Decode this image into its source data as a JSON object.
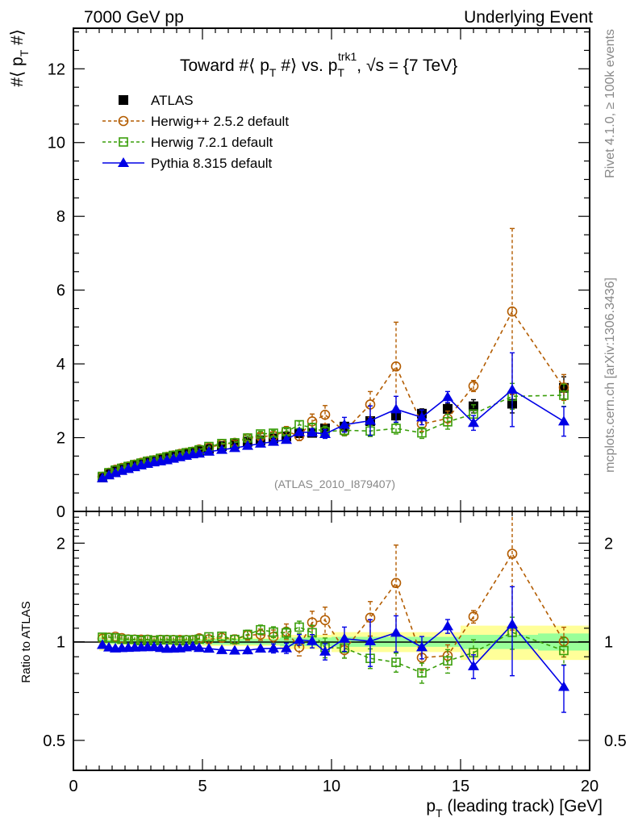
{
  "header": {
    "left": "7000 GeV pp",
    "right": "Underlying Event"
  },
  "side_labels": {
    "rivet": "Rivet 4.1.0, ≥ 100k events",
    "mcplots": "mcplots.cern.ch [arXiv:1306.3436]"
  },
  "chart_data": [
    {
      "type": "scatter",
      "panel": "main",
      "title": "Toward #⟨ p_T #⟩ vs. p_T^trk1, √s = {7 TeV}",
      "title_parts": {
        "a": "Toward #⟨ p",
        "b": "T",
        "c": " #⟩ vs. p",
        "d": "T",
        "e": "trk1",
        "f": ", √s = {7 TeV}"
      },
      "ylabel": "#⟨ p_T #⟩",
      "ylabel_parts": {
        "a": "#⟨ p",
        "b": "T",
        "c": " #⟩"
      },
      "xlabel": "p_T (leading track) [GeV]",
      "xlim": [
        0,
        20
      ],
      "ylim": [
        0,
        13.1
      ],
      "yticks": [
        0,
        2,
        4,
        6,
        8,
        10,
        12
      ],
      "xticks": [
        0,
        5,
        10,
        15,
        20
      ],
      "analysis_tag": "(ATLAS_2010_I879407)",
      "legend_position": "top-left",
      "x": [
        1.125,
        1.375,
        1.625,
        1.875,
        2.125,
        2.375,
        2.625,
        2.875,
        3.125,
        3.375,
        3.625,
        3.875,
        4.125,
        4.375,
        4.625,
        4.875,
        5.25,
        5.75,
        6.25,
        6.75,
        7.25,
        7.75,
        8.25,
        8.75,
        9.25,
        9.75,
        10.5,
        11.5,
        12.5,
        13.5,
        14.5,
        15.5,
        17,
        19
      ],
      "series": [
        {
          "name": "ATLAS",
          "color": "#000000",
          "marker": "filled-square",
          "line": "none",
          "values": [
            0.92,
            1.02,
            1.09,
            1.15,
            1.2,
            1.25,
            1.3,
            1.34,
            1.38,
            1.42,
            1.46,
            1.5,
            1.54,
            1.57,
            1.6,
            1.64,
            1.7,
            1.77,
            1.83,
            1.89,
            1.93,
            1.98,
            2.03,
            2.12,
            2.13,
            2.25,
            2.3,
            2.45,
            2.6,
            2.65,
            2.78,
            2.85,
            2.92,
            3.35
          ],
          "errors": [
            0.02,
            0.02,
            0.02,
            0.02,
            0.02,
            0.02,
            0.02,
            0.02,
            0.02,
            0.02,
            0.02,
            0.02,
            0.02,
            0.02,
            0.02,
            0.02,
            0.03,
            0.03,
            0.03,
            0.04,
            0.04,
            0.05,
            0.05,
            0.06,
            0.07,
            0.08,
            0.08,
            0.1,
            0.12,
            0.13,
            0.15,
            0.18,
            0.25,
            0.3
          ]
        },
        {
          "name": "Herwig++ 2.5.2 default",
          "color": "#b35c00",
          "marker": "open-circle",
          "line": "dashed",
          "values": [
            0.94,
            1.05,
            1.13,
            1.18,
            1.22,
            1.27,
            1.32,
            1.36,
            1.39,
            1.44,
            1.48,
            1.52,
            1.56,
            1.59,
            1.62,
            1.68,
            1.73,
            1.82,
            1.86,
            1.98,
            2.03,
            2.05,
            2.18,
            2.04,
            2.44,
            2.62,
            2.17,
            2.9,
            3.93,
            2.37,
            2.52,
            3.4,
            5.42,
            3.36
          ],
          "errors": [
            0.02,
            0.02,
            0.02,
            0.02,
            0.02,
            0.02,
            0.02,
            0.03,
            0.03,
            0.03,
            0.03,
            0.03,
            0.03,
            0.03,
            0.04,
            0.04,
            0.05,
            0.05,
            0.06,
            0.07,
            0.08,
            0.1,
            0.12,
            0.12,
            0.2,
            0.25,
            0.12,
            0.35,
            1.2,
            0.2,
            0.2,
            0.15,
            2.25,
            0.35
          ]
        },
        {
          "name": "Herwig 7.2.1 default",
          "color": "#3a9e0a",
          "marker": "open-square",
          "line": "dashed",
          "values": [
            0.95,
            1.05,
            1.12,
            1.17,
            1.22,
            1.27,
            1.31,
            1.36,
            1.39,
            1.44,
            1.48,
            1.52,
            1.55,
            1.59,
            1.62,
            1.67,
            1.76,
            1.84,
            1.86,
            1.99,
            2.1,
            2.12,
            2.16,
            2.35,
            2.27,
            2.16,
            2.2,
            2.18,
            2.25,
            2.13,
            2.43,
            2.64,
            3.12,
            3.15
          ],
          "errors": [
            0.02,
            0.02,
            0.02,
            0.02,
            0.02,
            0.02,
            0.02,
            0.02,
            0.02,
            0.02,
            0.02,
            0.02,
            0.02,
            0.03,
            0.03,
            0.03,
            0.04,
            0.04,
            0.05,
            0.06,
            0.07,
            0.08,
            0.08,
            0.1,
            0.12,
            0.15,
            0.15,
            0.15,
            0.15,
            0.15,
            0.2,
            0.25,
            0.35,
            0.3
          ]
        },
        {
          "name": "Pythia 8.315 default",
          "color": "#0000e6",
          "marker": "filled-triangle",
          "line": "solid",
          "values": [
            0.9,
            0.98,
            1.04,
            1.1,
            1.15,
            1.2,
            1.25,
            1.29,
            1.33,
            1.36,
            1.39,
            1.43,
            1.47,
            1.51,
            1.55,
            1.57,
            1.62,
            1.67,
            1.72,
            1.78,
            1.84,
            1.89,
            1.94,
            2.15,
            2.14,
            2.1,
            2.35,
            2.46,
            2.77,
            2.55,
            3.1,
            2.4,
            3.3,
            2.44
          ],
          "errors": [
            0.02,
            0.02,
            0.02,
            0.02,
            0.02,
            0.02,
            0.02,
            0.02,
            0.02,
            0.02,
            0.02,
            0.02,
            0.02,
            0.02,
            0.03,
            0.03,
            0.03,
            0.04,
            0.04,
            0.05,
            0.05,
            0.06,
            0.07,
            0.08,
            0.1,
            0.12,
            0.2,
            0.4,
            0.35,
            0.2,
            0.15,
            0.2,
            1.0,
            0.4
          ]
        }
      ]
    },
    {
      "type": "scatter",
      "panel": "ratio",
      "ylabel": "Ratio to ATLAS",
      "yscale": "log",
      "ylim": [
        0.405,
        2.5
      ],
      "yticks": [
        0.5,
        1,
        2
      ],
      "ytick_labels": [
        "0.5",
        "1",
        "2"
      ],
      "xticks": [
        0,
        5,
        10,
        15,
        20
      ],
      "xtick_labels": [
        "0",
        "5",
        "10",
        "15",
        "20"
      ],
      "xlabel_parts": {
        "a": "p",
        "b": "T",
        "c": " (leading track) [GeV]"
      },
      "reference_band": {
        "colors": {
          "stat": "#99ff99",
          "total": "#ffff99"
        },
        "bins": [
          [
            1,
            1.25
          ],
          [
            1.25,
            5
          ],
          [
            5,
            8
          ],
          [
            8,
            10
          ],
          [
            10,
            15
          ],
          [
            15,
            18
          ],
          [
            18,
            20
          ]
        ],
        "stat_half_width": [
          0.03,
          0.015,
          0.02,
          0.03,
          0.035,
          0.05,
          0.06
        ],
        "total_half_width": [
          0.06,
          0.02,
          0.03,
          0.05,
          0.07,
          0.12,
          0.12
        ]
      }
    }
  ]
}
